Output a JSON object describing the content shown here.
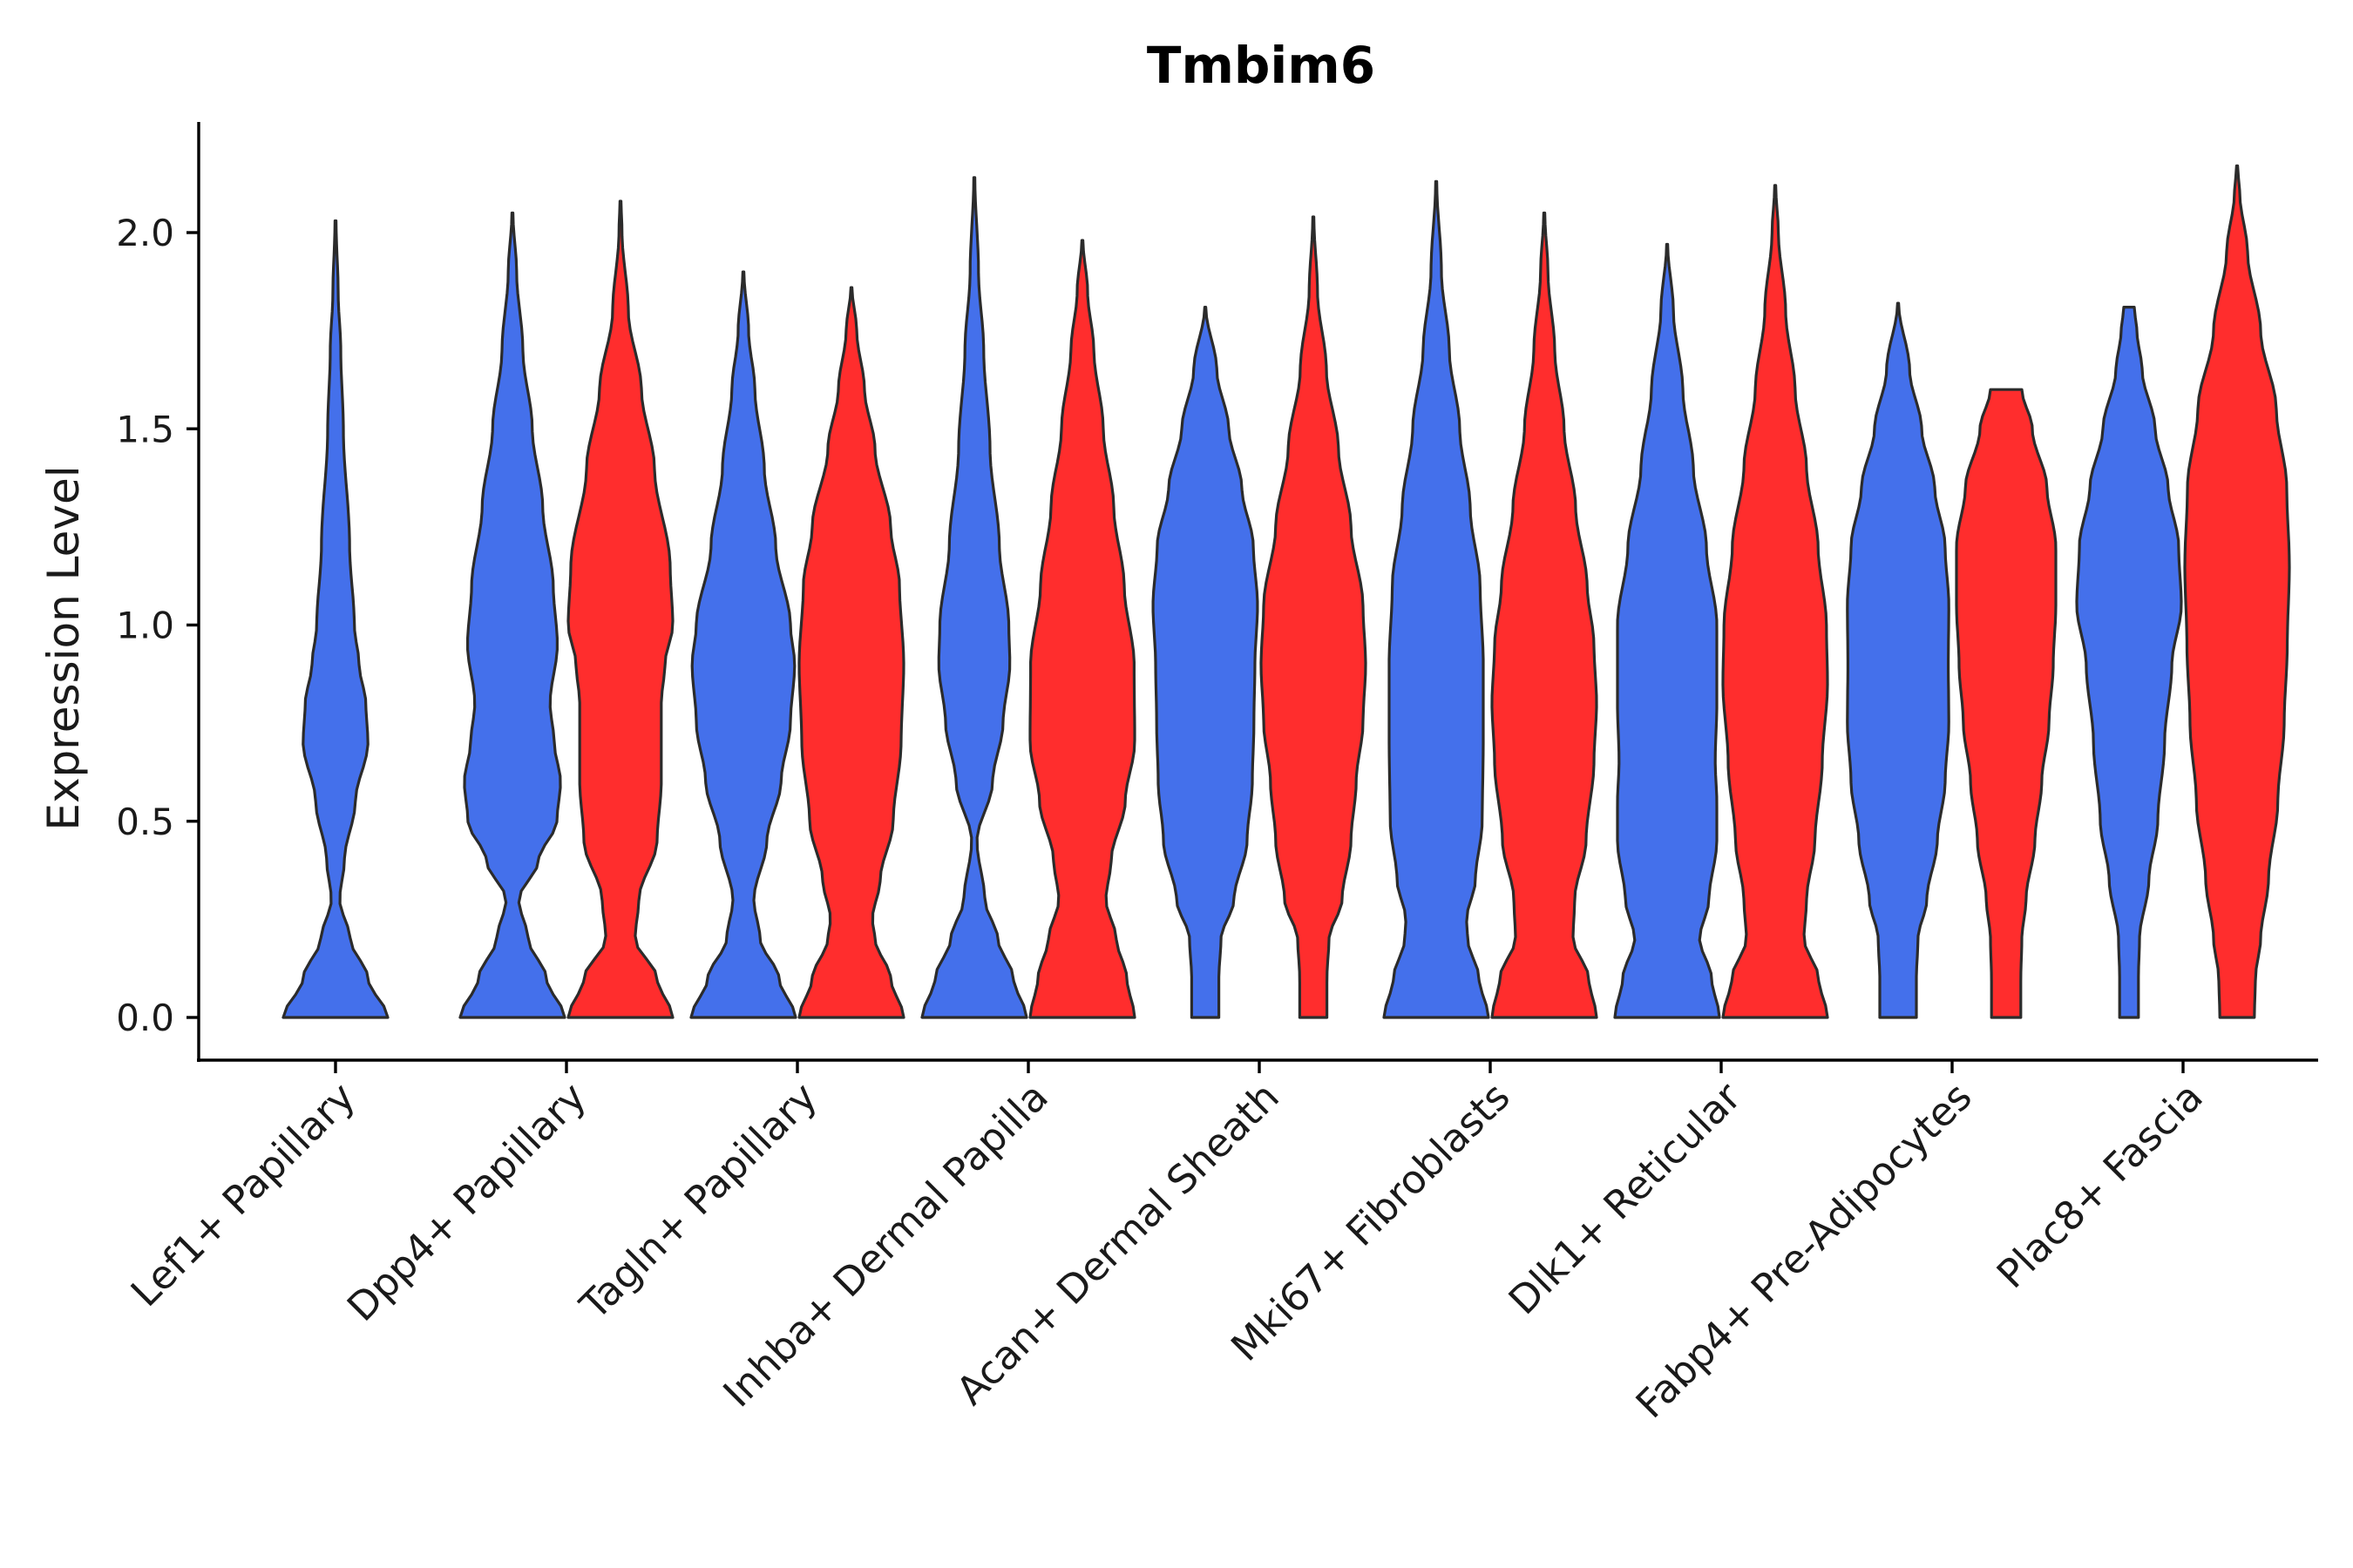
{
  "chart_data": {
    "type": "violin",
    "title": "Tmbim6",
    "xlabel": "",
    "ylabel": "Expression Level",
    "ylim": [
      -0.11,
      2.28
    ],
    "yticks": [
      "0.0",
      "0.5",
      "1.0",
      "1.5",
      "2.0"
    ],
    "grid": false,
    "legend": "none",
    "categories": [
      "Lef1+ Papillary",
      "Dpp4+ Papillary",
      "Tagln+ Papillary",
      "Inhba+ Dermal Papilla",
      "Acan+ Dermal Sheath",
      "Mki67+ Fibroblasts",
      "Dlk1+ Reticular",
      "Fabp4+ Pre-Adipocytes",
      "Plac8+ Fascia"
    ],
    "series_colors": {
      "group_a": "#4470EB",
      "group_b": "#FF2D2D"
    },
    "violins": [
      {
        "category_index": 0,
        "group": "group_a",
        "max": 2.03,
        "density": [
          [
            0.0,
            1.0
          ],
          [
            0.1,
            0.62
          ],
          [
            0.2,
            0.28
          ],
          [
            0.3,
            0.08
          ],
          [
            0.4,
            0.17
          ],
          [
            0.55,
            0.38
          ],
          [
            0.7,
            0.62
          ],
          [
            0.8,
            0.58
          ],
          [
            0.9,
            0.45
          ],
          [
            1.0,
            0.36
          ],
          [
            1.2,
            0.27
          ],
          [
            1.5,
            0.15
          ],
          [
            1.7,
            0.1
          ],
          [
            1.85,
            0.05
          ],
          [
            2.03,
            0.01
          ]
        ]
      },
      {
        "category_index": 1,
        "group": "group_a",
        "max": 2.05,
        "density": [
          [
            0.0,
            1.0
          ],
          [
            0.1,
            0.65
          ],
          [
            0.2,
            0.3
          ],
          [
            0.3,
            0.12
          ],
          [
            0.4,
            0.5
          ],
          [
            0.5,
            0.85
          ],
          [
            0.6,
            0.92
          ],
          [
            0.7,
            0.8
          ],
          [
            0.8,
            0.72
          ],
          [
            0.95,
            0.86
          ],
          [
            1.1,
            0.78
          ],
          [
            1.3,
            0.58
          ],
          [
            1.5,
            0.38
          ],
          [
            1.7,
            0.2
          ],
          [
            1.9,
            0.08
          ],
          [
            2.05,
            0.01
          ]
        ]
      },
      {
        "category_index": 1,
        "group": "group_b",
        "max": 2.08,
        "density": [
          [
            0.0,
            1.0
          ],
          [
            0.1,
            0.7
          ],
          [
            0.2,
            0.28
          ],
          [
            0.3,
            0.35
          ],
          [
            0.45,
            0.7
          ],
          [
            0.6,
            0.78
          ],
          [
            0.8,
            0.78
          ],
          [
            0.9,
            0.85
          ],
          [
            1.0,
            1.0
          ],
          [
            1.15,
            0.95
          ],
          [
            1.4,
            0.65
          ],
          [
            1.6,
            0.4
          ],
          [
            1.8,
            0.15
          ],
          [
            2.0,
            0.03
          ],
          [
            2.08,
            0.01
          ]
        ]
      },
      {
        "category_index": 2,
        "group": "group_a",
        "max": 1.9,
        "density": [
          [
            0.0,
            1.0
          ],
          [
            0.1,
            0.68
          ],
          [
            0.2,
            0.32
          ],
          [
            0.3,
            0.2
          ],
          [
            0.45,
            0.45
          ],
          [
            0.6,
            0.72
          ],
          [
            0.75,
            0.9
          ],
          [
            0.9,
            0.98
          ],
          [
            1.0,
            0.9
          ],
          [
            1.2,
            0.62
          ],
          [
            1.4,
            0.4
          ],
          [
            1.6,
            0.22
          ],
          [
            1.75,
            0.1
          ],
          [
            1.9,
            0.01
          ]
        ]
      },
      {
        "category_index": 2,
        "group": "group_b",
        "max": 1.86,
        "density": [
          [
            0.0,
            1.0
          ],
          [
            0.1,
            0.75
          ],
          [
            0.2,
            0.45
          ],
          [
            0.25,
            0.4
          ],
          [
            0.35,
            0.55
          ],
          [
            0.5,
            0.8
          ],
          [
            0.7,
            0.95
          ],
          [
            0.9,
            1.0
          ],
          [
            1.1,
            0.92
          ],
          [
            1.25,
            0.75
          ],
          [
            1.45,
            0.45
          ],
          [
            1.6,
            0.25
          ],
          [
            1.75,
            0.1
          ],
          [
            1.86,
            0.01
          ]
        ]
      },
      {
        "category_index": 3,
        "group": "group_a",
        "max": 2.14,
        "density": [
          [
            0.0,
            1.0
          ],
          [
            0.1,
            0.75
          ],
          [
            0.2,
            0.45
          ],
          [
            0.3,
            0.2
          ],
          [
            0.45,
            0.05
          ],
          [
            0.6,
            0.35
          ],
          [
            0.75,
            0.55
          ],
          [
            0.9,
            0.68
          ],
          [
            1.0,
            0.66
          ],
          [
            1.2,
            0.48
          ],
          [
            1.45,
            0.3
          ],
          [
            1.7,
            0.18
          ],
          [
            1.9,
            0.08
          ],
          [
            2.14,
            0.01
          ]
        ]
      },
      {
        "category_index": 3,
        "group": "group_b",
        "max": 1.98,
        "density": [
          [
            0.0,
            1.0
          ],
          [
            0.1,
            0.85
          ],
          [
            0.2,
            0.65
          ],
          [
            0.3,
            0.45
          ],
          [
            0.4,
            0.55
          ],
          [
            0.55,
            0.82
          ],
          [
            0.7,
            1.0
          ],
          [
            0.9,
            0.99
          ],
          [
            1.1,
            0.8
          ],
          [
            1.3,
            0.6
          ],
          [
            1.5,
            0.4
          ],
          [
            1.7,
            0.22
          ],
          [
            1.85,
            0.1
          ],
          [
            1.98,
            0.01
          ]
        ]
      },
      {
        "category_index": 4,
        "group": "group_a",
        "max": 1.81,
        "density": [
          [
            0.0,
            0.26
          ],
          [
            0.1,
            0.26
          ],
          [
            0.2,
            0.3
          ],
          [
            0.3,
            0.55
          ],
          [
            0.45,
            0.8
          ],
          [
            0.6,
            0.9
          ],
          [
            0.75,
            0.93
          ],
          [
            0.9,
            0.95
          ],
          [
            1.05,
            1.0
          ],
          [
            1.2,
            0.92
          ],
          [
            1.35,
            0.7
          ],
          [
            1.5,
            0.45
          ],
          [
            1.65,
            0.22
          ],
          [
            1.81,
            0.01
          ]
        ]
      },
      {
        "category_index": 4,
        "group": "group_b",
        "max": 2.04,
        "density": [
          [
            0.0,
            0.26
          ],
          [
            0.1,
            0.26
          ],
          [
            0.2,
            0.3
          ],
          [
            0.3,
            0.55
          ],
          [
            0.45,
            0.72
          ],
          [
            0.6,
            0.82
          ],
          [
            0.75,
            0.95
          ],
          [
            0.9,
            1.0
          ],
          [
            1.05,
            0.95
          ],
          [
            1.25,
            0.72
          ],
          [
            1.45,
            0.48
          ],
          [
            1.65,
            0.25
          ],
          [
            1.85,
            0.08
          ],
          [
            2.04,
            0.01
          ]
        ]
      },
      {
        "category_index": 5,
        "group": "group_a",
        "max": 2.13,
        "density": [
          [
            0.0,
            1.0
          ],
          [
            0.1,
            0.82
          ],
          [
            0.2,
            0.6
          ],
          [
            0.25,
            0.58
          ],
          [
            0.35,
            0.75
          ],
          [
            0.5,
            0.88
          ],
          [
            0.7,
            0.9
          ],
          [
            0.9,
            0.9
          ],
          [
            1.1,
            0.84
          ],
          [
            1.3,
            0.65
          ],
          [
            1.5,
            0.45
          ],
          [
            1.7,
            0.25
          ],
          [
            1.9,
            0.1
          ],
          [
            2.13,
            0.01
          ]
        ]
      },
      {
        "category_index": 5,
        "group": "group_b",
        "max": 2.05,
        "density": [
          [
            0.0,
            1.0
          ],
          [
            0.1,
            0.85
          ],
          [
            0.2,
            0.55
          ],
          [
            0.3,
            0.58
          ],
          [
            0.45,
            0.8
          ],
          [
            0.65,
            0.95
          ],
          [
            0.8,
            1.0
          ],
          [
            0.95,
            0.95
          ],
          [
            1.1,
            0.82
          ],
          [
            1.3,
            0.6
          ],
          [
            1.5,
            0.38
          ],
          [
            1.7,
            0.2
          ],
          [
            1.9,
            0.07
          ],
          [
            2.05,
            0.01
          ]
        ]
      },
      {
        "category_index": 6,
        "group": "group_a",
        "max": 1.97,
        "density": [
          [
            0.0,
            1.0
          ],
          [
            0.1,
            0.85
          ],
          [
            0.2,
            0.62
          ],
          [
            0.3,
            0.8
          ],
          [
            0.45,
            0.95
          ],
          [
            0.55,
            0.95
          ],
          [
            0.65,
            0.92
          ],
          [
            0.8,
            0.95
          ],
          [
            1.0,
            0.95
          ],
          [
            1.2,
            0.75
          ],
          [
            1.4,
            0.5
          ],
          [
            1.6,
            0.3
          ],
          [
            1.8,
            0.12
          ],
          [
            1.97,
            0.01
          ]
        ]
      },
      {
        "category_index": 6,
        "group": "group_b",
        "max": 2.12,
        "density": [
          [
            0.0,
            1.0
          ],
          [
            0.1,
            0.83
          ],
          [
            0.2,
            0.55
          ],
          [
            0.3,
            0.6
          ],
          [
            0.45,
            0.76
          ],
          [
            0.65,
            0.9
          ],
          [
            0.85,
            1.0
          ],
          [
            1.0,
            0.98
          ],
          [
            1.2,
            0.82
          ],
          [
            1.4,
            0.6
          ],
          [
            1.6,
            0.38
          ],
          [
            1.8,
            0.2
          ],
          [
            2.0,
            0.06
          ],
          [
            2.12,
            0.01
          ]
        ]
      },
      {
        "category_index": 7,
        "group": "group_a",
        "max": 1.82,
        "density": [
          [
            0.0,
            0.35
          ],
          [
            0.1,
            0.35
          ],
          [
            0.2,
            0.38
          ],
          [
            0.3,
            0.55
          ],
          [
            0.45,
            0.75
          ],
          [
            0.6,
            0.9
          ],
          [
            0.75,
            0.97
          ],
          [
            0.9,
            0.96
          ],
          [
            1.05,
            0.97
          ],
          [
            1.2,
            0.9
          ],
          [
            1.35,
            0.7
          ],
          [
            1.5,
            0.45
          ],
          [
            1.65,
            0.22
          ],
          [
            1.82,
            0.01
          ]
        ]
      },
      {
        "category_index": 7,
        "group": "group_b",
        "max": 1.6,
        "density": [
          [
            0.0,
            0.28
          ],
          [
            0.1,
            0.28
          ],
          [
            0.2,
            0.3
          ],
          [
            0.3,
            0.38
          ],
          [
            0.45,
            0.55
          ],
          [
            0.6,
            0.68
          ],
          [
            0.75,
            0.82
          ],
          [
            0.9,
            0.9
          ],
          [
            1.05,
            0.95
          ],
          [
            1.2,
            0.95
          ],
          [
            1.35,
            0.78
          ],
          [
            1.5,
            0.5
          ],
          [
            1.6,
            0.3
          ]
        ]
      },
      {
        "category_index": 8,
        "group": "group_a",
        "max": 1.81,
        "density": [
          [
            0.0,
            0.18
          ],
          [
            0.1,
            0.18
          ],
          [
            0.2,
            0.2
          ],
          [
            0.35,
            0.38
          ],
          [
            0.5,
            0.55
          ],
          [
            0.7,
            0.68
          ],
          [
            0.9,
            0.82
          ],
          [
            1.05,
            1.0
          ],
          [
            1.2,
            0.95
          ],
          [
            1.35,
            0.75
          ],
          [
            1.5,
            0.5
          ],
          [
            1.65,
            0.25
          ],
          [
            1.75,
            0.15
          ],
          [
            1.81,
            0.1
          ]
        ]
      },
      {
        "category_index": 8,
        "group": "group_b",
        "max": 2.17,
        "density": [
          [
            0.0,
            0.33
          ],
          [
            0.1,
            0.35
          ],
          [
            0.2,
            0.45
          ],
          [
            0.35,
            0.6
          ],
          [
            0.55,
            0.78
          ],
          [
            0.75,
            0.9
          ],
          [
            0.95,
            0.96
          ],
          [
            1.15,
            1.0
          ],
          [
            1.35,
            0.95
          ],
          [
            1.55,
            0.75
          ],
          [
            1.75,
            0.45
          ],
          [
            1.95,
            0.2
          ],
          [
            2.1,
            0.05
          ],
          [
            2.17,
            0.01
          ]
        ]
      }
    ]
  }
}
